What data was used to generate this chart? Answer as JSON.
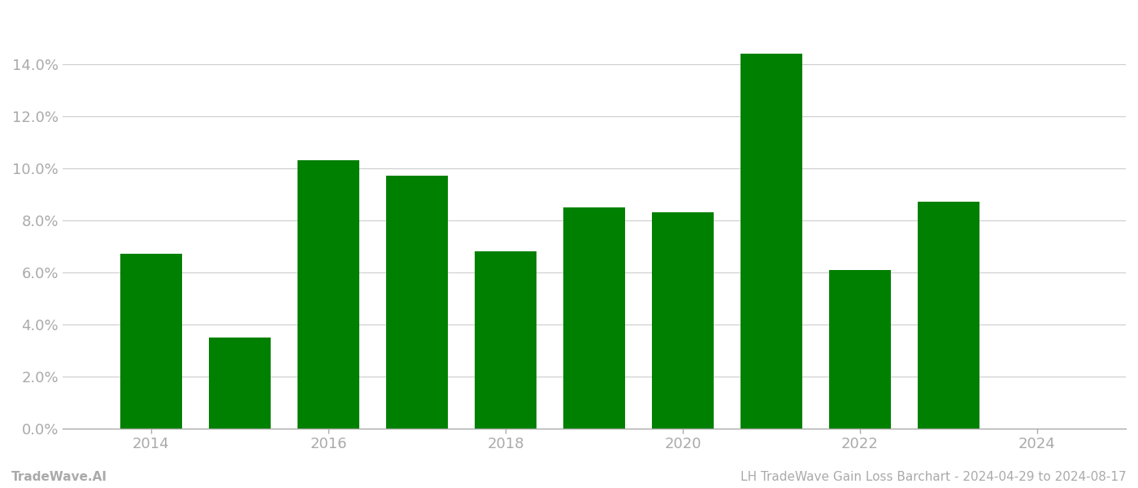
{
  "years": [
    2014,
    2015,
    2016,
    2017,
    2018,
    2019,
    2020,
    2021,
    2022,
    2023
  ],
  "values": [
    0.067,
    0.035,
    0.103,
    0.097,
    0.068,
    0.085,
    0.083,
    0.144,
    0.061,
    0.087
  ],
  "bar_color": "#008000",
  "background_color": "#ffffff",
  "grid_color": "#cccccc",
  "tick_color": "#aaaaaa",
  "ylim": [
    0,
    0.16
  ],
  "yticks": [
    0.0,
    0.02,
    0.04,
    0.06,
    0.08,
    0.1,
    0.12,
    0.14
  ],
  "footer_left": "TradeWave.AI",
  "footer_right": "LH TradeWave Gain Loss Barchart - 2024-04-29 to 2024-08-17",
  "footer_fontsize": 11,
  "bar_width": 0.7,
  "spine_color": "#aaaaaa",
  "xtick_years": [
    2014,
    2016,
    2018,
    2020,
    2022,
    2024
  ],
  "xlim": [
    2013.0,
    2025.0
  ]
}
